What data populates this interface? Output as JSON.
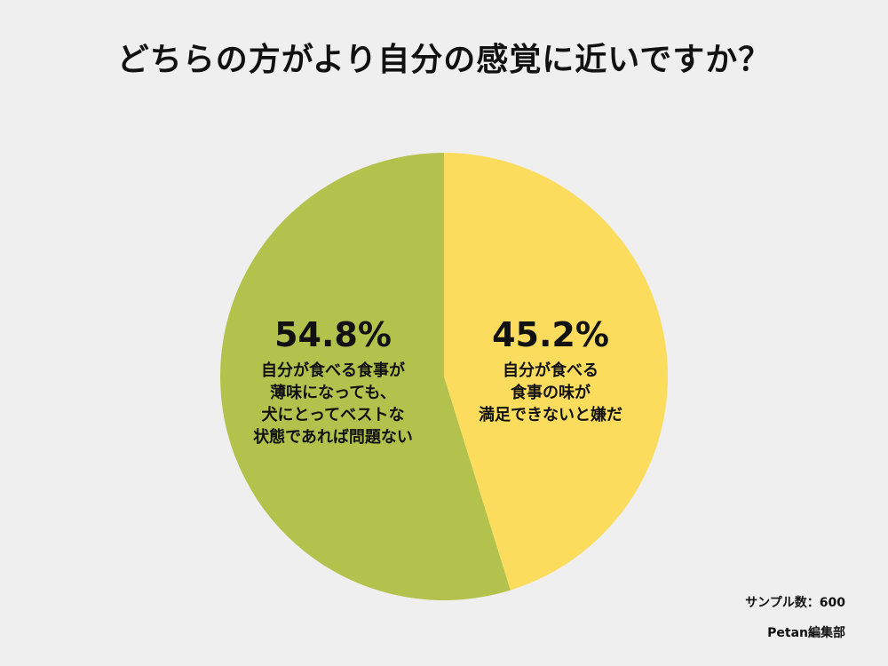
{
  "title": "どちらの方がより自分の感覚に近いですか？",
  "chart_data": {
    "type": "pie",
    "title": "どちらの方がより自分の感覚に近いですか？",
    "slices": [
      {
        "percent_label": "54.8%",
        "value": 54.8,
        "label": "自分が食べる食事が\n薄味になっても、\n犬にとってベストな\n状態であれば問題ない",
        "color": "#b2c24c"
      },
      {
        "percent_label": "45.2%",
        "value": 45.2,
        "label": "自分が食べる\n食事の味が\n満足できないと嫌だ",
        "color": "#fbdc5d"
      }
    ],
    "start": "12 o'clock",
    "direction": "counterclockwise for first slice (green on left), yellow on right"
  },
  "footer": {
    "sample": "サンプル数：600",
    "credit": "Petan編集部"
  }
}
